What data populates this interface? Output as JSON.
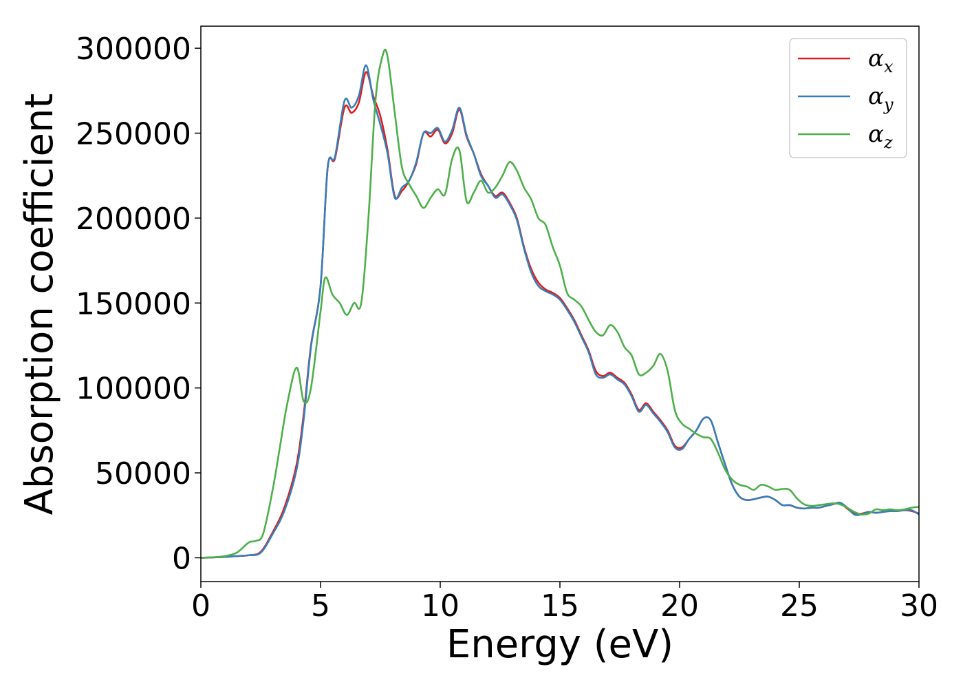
{
  "chart_data": {
    "type": "line",
    "title": "",
    "xlabel": "Energy (eV)",
    "ylabel": "Absorption coefficient",
    "xlim": [
      0,
      30
    ],
    "ylim": [
      -14000,
      313000
    ],
    "xticks": [
      0,
      5,
      10,
      15,
      20,
      25,
      30
    ],
    "xtick_labels": [
      "0",
      "5",
      "10",
      "15",
      "20",
      "25",
      "30"
    ],
    "yticks": [
      0,
      50000,
      100000,
      150000,
      200000,
      250000,
      300000
    ],
    "ytick_labels": [
      "0",
      "50000",
      "100000",
      "150000",
      "200000",
      "250000",
      "300000"
    ],
    "grid": false,
    "legend": {
      "position": "top-right"
    },
    "series": [
      {
        "name": "αx",
        "legend_base": "α",
        "legend_sub": "x",
        "color": "#e41a1c",
        "x": [
          0,
          0.5,
          1,
          1.5,
          2,
          2.5,
          3,
          3.5,
          4,
          4.3,
          4.6,
          5,
          5.3,
          5.6,
          6,
          6.3,
          6.6,
          6.9,
          7.2,
          7.5,
          7.8,
          8.1,
          8.4,
          8.7,
          9,
          9.3,
          9.6,
          9.9,
          10.2,
          10.5,
          10.8,
          11.1,
          11.4,
          11.7,
          12,
          12.3,
          12.6,
          12.9,
          13.2,
          13.5,
          13.8,
          14.1,
          14.4,
          14.7,
          15,
          15.3,
          15.6,
          15.9,
          16.2,
          16.5,
          16.8,
          17.1,
          17.4,
          17.7,
          18,
          18.3,
          18.6,
          18.9,
          19.2,
          19.5,
          19.8,
          20.1,
          20.4,
          20.7,
          21,
          21.3,
          21.6,
          21.9,
          22.2,
          22.5,
          22.8,
          23.1,
          23.4,
          23.7,
          24,
          24.3,
          24.6,
          24.9,
          25.2,
          25.5,
          25.8,
          26.1,
          26.4,
          26.7,
          27,
          27.3,
          27.6,
          27.9,
          28.2,
          28.5,
          28.8,
          29.1,
          29.4,
          29.7,
          30
        ],
        "y": [
          0,
          200,
          500,
          1000,
          1500,
          3500,
          15000,
          30000,
          55000,
          85000,
          125000,
          160000,
          230000,
          235000,
          265000,
          262000,
          268000,
          286000,
          272000,
          260000,
          240000,
          213000,
          216000,
          222000,
          232000,
          250000,
          248000,
          252000,
          244000,
          250000,
          264000,
          248000,
          238000,
          226000,
          219000,
          213000,
          215000,
          209000,
          200000,
          183000,
          170000,
          162000,
          158000,
          156000,
          153000,
          147000,
          140000,
          131000,
          122000,
          110000,
          107000,
          109000,
          106000,
          103000,
          96000,
          87000,
          91000,
          86000,
          81000,
          75000,
          66000,
          65000,
          70000,
          75000,
          82000,
          81000,
          68000,
          55000,
          43000,
          36000,
          34000,
          34500,
          35500,
          36000,
          34000,
          31000,
          31000,
          29500,
          29000,
          29500,
          29500,
          30500,
          31500,
          32000,
          29000,
          26000,
          26000,
          27000,
          26500,
          27000,
          27500,
          27500,
          28000,
          27500,
          26000
        ]
      },
      {
        "name": "αy",
        "legend_base": "α",
        "legend_sub": "y",
        "color": "#377eb8",
        "x": [
          0,
          0.5,
          1,
          1.5,
          2,
          2.5,
          3,
          3.5,
          4,
          4.3,
          4.6,
          5,
          5.3,
          5.6,
          6,
          6.3,
          6.6,
          6.9,
          7.2,
          7.5,
          7.8,
          8.1,
          8.4,
          8.7,
          9,
          9.3,
          9.6,
          9.9,
          10.2,
          10.5,
          10.8,
          11.1,
          11.4,
          11.7,
          12,
          12.3,
          12.6,
          12.9,
          13.2,
          13.5,
          13.8,
          14.1,
          14.4,
          14.7,
          15,
          15.3,
          15.6,
          15.9,
          16.2,
          16.5,
          16.8,
          17.1,
          17.4,
          17.7,
          18,
          18.3,
          18.6,
          18.9,
          19.2,
          19.5,
          19.8,
          20.1,
          20.4,
          20.7,
          21,
          21.3,
          21.6,
          21.9,
          22.2,
          22.5,
          22.8,
          23.1,
          23.4,
          23.7,
          24,
          24.3,
          24.6,
          24.9,
          25.2,
          25.5,
          25.8,
          26.1,
          26.4,
          26.7,
          27,
          27.3,
          27.6,
          27.9,
          28.2,
          28.5,
          28.8,
          29.1,
          29.4,
          29.7,
          30
        ],
        "y": [
          0,
          200,
          500,
          1000,
          1500,
          3000,
          14000,
          28000,
          52000,
          82000,
          124000,
          160000,
          230000,
          236000,
          269000,
          265000,
          272000,
          290000,
          270000,
          255000,
          238000,
          212000,
          218000,
          222000,
          233000,
          250000,
          250000,
          253000,
          245000,
          252000,
          265000,
          249000,
          238000,
          225000,
          219000,
          212000,
          214000,
          208000,
          199000,
          182000,
          168000,
          160000,
          157000,
          155000,
          152000,
          146000,
          139000,
          130000,
          121000,
          108000,
          106000,
          108000,
          105000,
          102000,
          95000,
          86000,
          90000,
          85000,
          80000,
          74000,
          65000,
          64000,
          70000,
          75000,
          82000,
          81000,
          68000,
          55000,
          43000,
          36000,
          34000,
          34500,
          35500,
          36000,
          34000,
          31000,
          31000,
          29500,
          29000,
          29500,
          29500,
          30500,
          31500,
          32500,
          29500,
          25500,
          25500,
          27000,
          26500,
          27000,
          27500,
          27500,
          28000,
          28000,
          25500
        ]
      },
      {
        "name": "αz",
        "legend_base": "α",
        "legend_sub": "z",
        "color": "#4daf4a",
        "x": [
          0,
          0.5,
          1,
          1.5,
          2,
          2.3,
          2.6,
          3,
          3.3,
          3.6,
          4,
          4.3,
          4.6,
          5,
          5.2,
          5.5,
          5.8,
          6.1,
          6.4,
          6.7,
          7,
          7.3,
          7.6,
          7.8,
          8.1,
          8.4,
          8.7,
          9,
          9.3,
          9.6,
          9.9,
          10.2,
          10.5,
          10.8,
          11.1,
          11.4,
          11.7,
          12,
          12.3,
          12.6,
          12.9,
          13.2,
          13.5,
          13.8,
          14.1,
          14.4,
          14.7,
          15,
          15.3,
          15.6,
          15.9,
          16.2,
          16.5,
          16.8,
          17.1,
          17.4,
          17.7,
          18,
          18.3,
          18.6,
          18.9,
          19.2,
          19.5,
          19.8,
          20.1,
          20.4,
          20.7,
          21,
          21.3,
          21.6,
          21.9,
          22.2,
          22.5,
          22.8,
          23.1,
          23.4,
          23.7,
          24,
          24.3,
          24.6,
          24.9,
          25.2,
          25.5,
          25.8,
          26.1,
          26.4,
          26.7,
          27,
          27.3,
          27.6,
          27.9,
          28.2,
          28.5,
          28.8,
          29.1,
          29.4,
          29.7,
          30
        ],
        "y": [
          0,
          300,
          1000,
          3000,
          9000,
          10000,
          14000,
          40000,
          65000,
          90000,
          112000,
          92000,
          100000,
          145000,
          165000,
          155000,
          150000,
          143000,
          150000,
          150000,
          200000,
          270000,
          296000,
          295000,
          262000,
          230000,
          220000,
          213000,
          206000,
          212000,
          217000,
          214000,
          235000,
          240000,
          210000,
          215000,
          222000,
          215000,
          218000,
          225000,
          233000,
          228000,
          218000,
          211000,
          200000,
          196000,
          183000,
          172000,
          156000,
          152000,
          148000,
          140000,
          133000,
          131000,
          137000,
          133000,
          124000,
          119000,
          108000,
          109000,
          113000,
          120000,
          110000,
          87000,
          79000,
          76000,
          73000,
          71000,
          70000,
          62000,
          52000,
          46000,
          43000,
          42000,
          40000,
          43000,
          42000,
          40000,
          40500,
          40000,
          35000,
          31500,
          30500,
          31000,
          31500,
          32000,
          31500,
          29500,
          27000,
          25500,
          26000,
          28500,
          28000,
          28500,
          28000,
          28500,
          29500,
          30000
        ]
      }
    ]
  }
}
